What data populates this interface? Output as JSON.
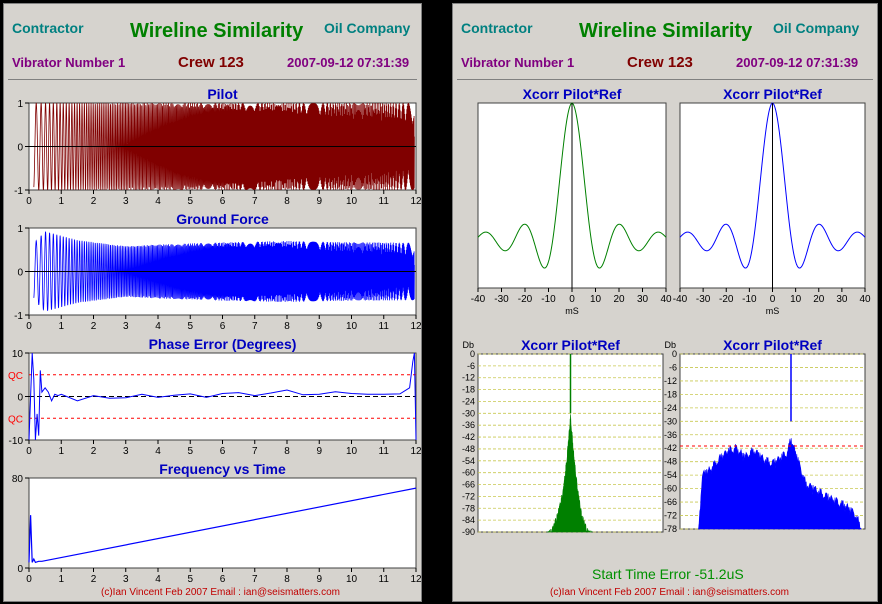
{
  "left": {
    "contractor": "Contractor",
    "title": "Wireline Similarity",
    "company": "Oil Company",
    "vibrator": "Vibrator Number 1",
    "crew": "Crew 123",
    "datetime": "2007-09-12 07:31:39",
    "footer": "(c)Ian Vincent Feb 2007 Email : ian@seismatters.com"
  },
  "right": {
    "contractor": "Contractor",
    "title": "Wireline Similarity",
    "company": "Oil Company",
    "vibrator": "Vibrator Number 1",
    "crew": "Crew 123",
    "datetime": "2007-09-12 07:31:39",
    "start_time_error": "Start Time Error -51.2uS",
    "footer": "(c)Ian Vincent Feb 2007 Email : ian@seismatters.com"
  },
  "colors": {
    "pilot": "#800000",
    "ground_force": "#0000ff",
    "xcorr_left": "#008000",
    "xcorr_right": "#0000ff",
    "qc": "#ff0000"
  },
  "chart_data": [
    {
      "id": "pilot",
      "type": "line",
      "title": "Pilot",
      "x_ticks": [
        0,
        1,
        2,
        3,
        4,
        5,
        6,
        7,
        8,
        9,
        10,
        11,
        12
      ],
      "y_ticks": [
        1,
        0,
        -1
      ],
      "xlim": [
        0,
        12
      ],
      "ylim": [
        -1,
        1
      ],
      "style": "dense-oscillation",
      "start": 0.15,
      "end": 11.95
    },
    {
      "id": "ground-force",
      "type": "line",
      "title": "Ground Force",
      "x_ticks": [
        0,
        1,
        2,
        3,
        4,
        5,
        6,
        7,
        8,
        9,
        10,
        11,
        12
      ],
      "y_ticks": [
        1,
        0,
        -1
      ],
      "xlim": [
        0,
        12
      ],
      "ylim": [
        -1,
        1
      ],
      "style": "dense-oscillation",
      "start": 0.15,
      "end": 11.95,
      "envelope": {
        "x": [
          0.15,
          0.5,
          1.5,
          3,
          4,
          6,
          8,
          10,
          11.9
        ],
        "y": [
          0.65,
          0.92,
          0.72,
          0.58,
          0.62,
          0.67,
          0.7,
          0.67,
          0.66
        ]
      }
    },
    {
      "id": "phase-error",
      "type": "line",
      "title": "Phase Error (Degrees)",
      "x_ticks": [
        0,
        1,
        2,
        3,
        4,
        5,
        6,
        7,
        8,
        9,
        10,
        11,
        12
      ],
      "y_ticks": [
        10,
        0,
        -10
      ],
      "xlim": [
        0,
        12
      ],
      "ylim": [
        -10,
        10
      ],
      "qc_label": "QC",
      "qc_level": 5,
      "x": [
        0,
        0.1,
        0.15,
        0.2,
        0.25,
        0.3,
        0.35,
        0.4,
        0.5,
        0.6,
        0.7,
        0.8,
        0.9,
        1,
        1.5,
        2,
        2.5,
        3,
        3.5,
        4,
        4.5,
        5,
        5.5,
        6,
        6.5,
        7,
        7.5,
        8,
        8.5,
        9,
        9.5,
        10,
        10.5,
        11,
        11.5,
        11.8,
        11.9,
        11.95,
        12
      ],
      "y": [
        -10,
        10,
        4,
        -10,
        -4,
        -9,
        6,
        1,
        2,
        1,
        -1,
        0.5,
        0.2,
        0.5,
        -1,
        0.2,
        -0.4,
        -0.3,
        0.5,
        -0.2,
        0.3,
        0.6,
        -0.2,
        0.7,
        0.9,
        0.2,
        0.8,
        1.5,
        0.4,
        0.5,
        1.1,
        0.7,
        0.5,
        0.5,
        0.6,
        2,
        8,
        10,
        -10
      ]
    },
    {
      "id": "frequency-vs-time",
      "type": "line",
      "title": "Frequency vs Time",
      "x_ticks": [
        0,
        1,
        2,
        3,
        4,
        5,
        6,
        7,
        8,
        9,
        10,
        11,
        12
      ],
      "y_ticks": [
        80,
        0
      ],
      "xlim": [
        0,
        12
      ],
      "ylim": [
        0,
        80
      ],
      "x": [
        0,
        0.05,
        0.1,
        0.15,
        0.2,
        0.3,
        0.4,
        12
      ],
      "y": [
        5,
        47,
        5,
        8,
        5,
        6,
        6,
        71
      ]
    },
    {
      "id": "xcorr-1",
      "type": "line",
      "title": "Xcorr Pilot*Ref",
      "x_ticks": [
        -40,
        -30,
        -20,
        -10,
        0,
        10,
        20,
        30,
        40
      ],
      "xlabel": "mS",
      "xlim": [
        -40,
        40
      ],
      "ylim": [
        -0.35,
        1
      ]
    },
    {
      "id": "xcorr-2",
      "type": "line",
      "title": "Xcorr Pilot*Ref",
      "x_ticks": [
        -40,
        -30,
        -20,
        -10,
        0,
        10,
        20,
        30,
        40
      ],
      "xlabel": "mS",
      "xlim": [
        -40,
        40
      ],
      "ylim": [
        -0.35,
        1
      ]
    },
    {
      "id": "spectrum-1",
      "type": "area",
      "title": "Xcorr Pilot*Ref",
      "ylabel": "Db",
      "y_ticks": [
        0,
        -6,
        -12,
        -18,
        -24,
        -30,
        -36,
        -42,
        -48,
        -54,
        -60,
        -66,
        -72,
        -78,
        -84,
        -90
      ],
      "ylim": [
        -90,
        0
      ],
      "xlim": [
        0,
        1
      ],
      "envelope": {
        "x": [
          0.37,
          0.4,
          0.43,
          0.46,
          0.48,
          0.5,
          0.52,
          0.54,
          0.56,
          0.59,
          0.62
        ],
        "y": [
          -90,
          -88,
          -80,
          -68,
          -52,
          -30,
          -52,
          -68,
          -80,
          -88,
          -90
        ]
      },
      "spike_x": 0.5
    },
    {
      "id": "spectrum-2",
      "type": "area",
      "title": "Xcorr Pilot*Ref",
      "ylabel": "Db",
      "y_ticks": [
        0,
        -6,
        -12,
        -18,
        -24,
        -30,
        -36,
        -42,
        -48,
        -54,
        -60,
        -66,
        -72,
        -78
      ],
      "ylim": [
        -78,
        0
      ],
      "xlim": [
        0,
        1
      ],
      "threshold": -41,
      "envelope": {
        "x": [
          0.1,
          0.12,
          0.16,
          0.2,
          0.25,
          0.3,
          0.35,
          0.4,
          0.45,
          0.5,
          0.55,
          0.58,
          0.6,
          0.64,
          0.68,
          0.72,
          0.76,
          0.8,
          0.85,
          0.9,
          0.95,
          0.98
        ],
        "y": [
          -78,
          -52,
          -50,
          -46,
          -42,
          -40,
          -44,
          -41,
          -45,
          -47,
          -44,
          -42,
          -36,
          -46,
          -56,
          -58,
          -60,
          -62,
          -64,
          -66,
          -70,
          -76
        ]
      },
      "spike_x": 0.6
    }
  ]
}
